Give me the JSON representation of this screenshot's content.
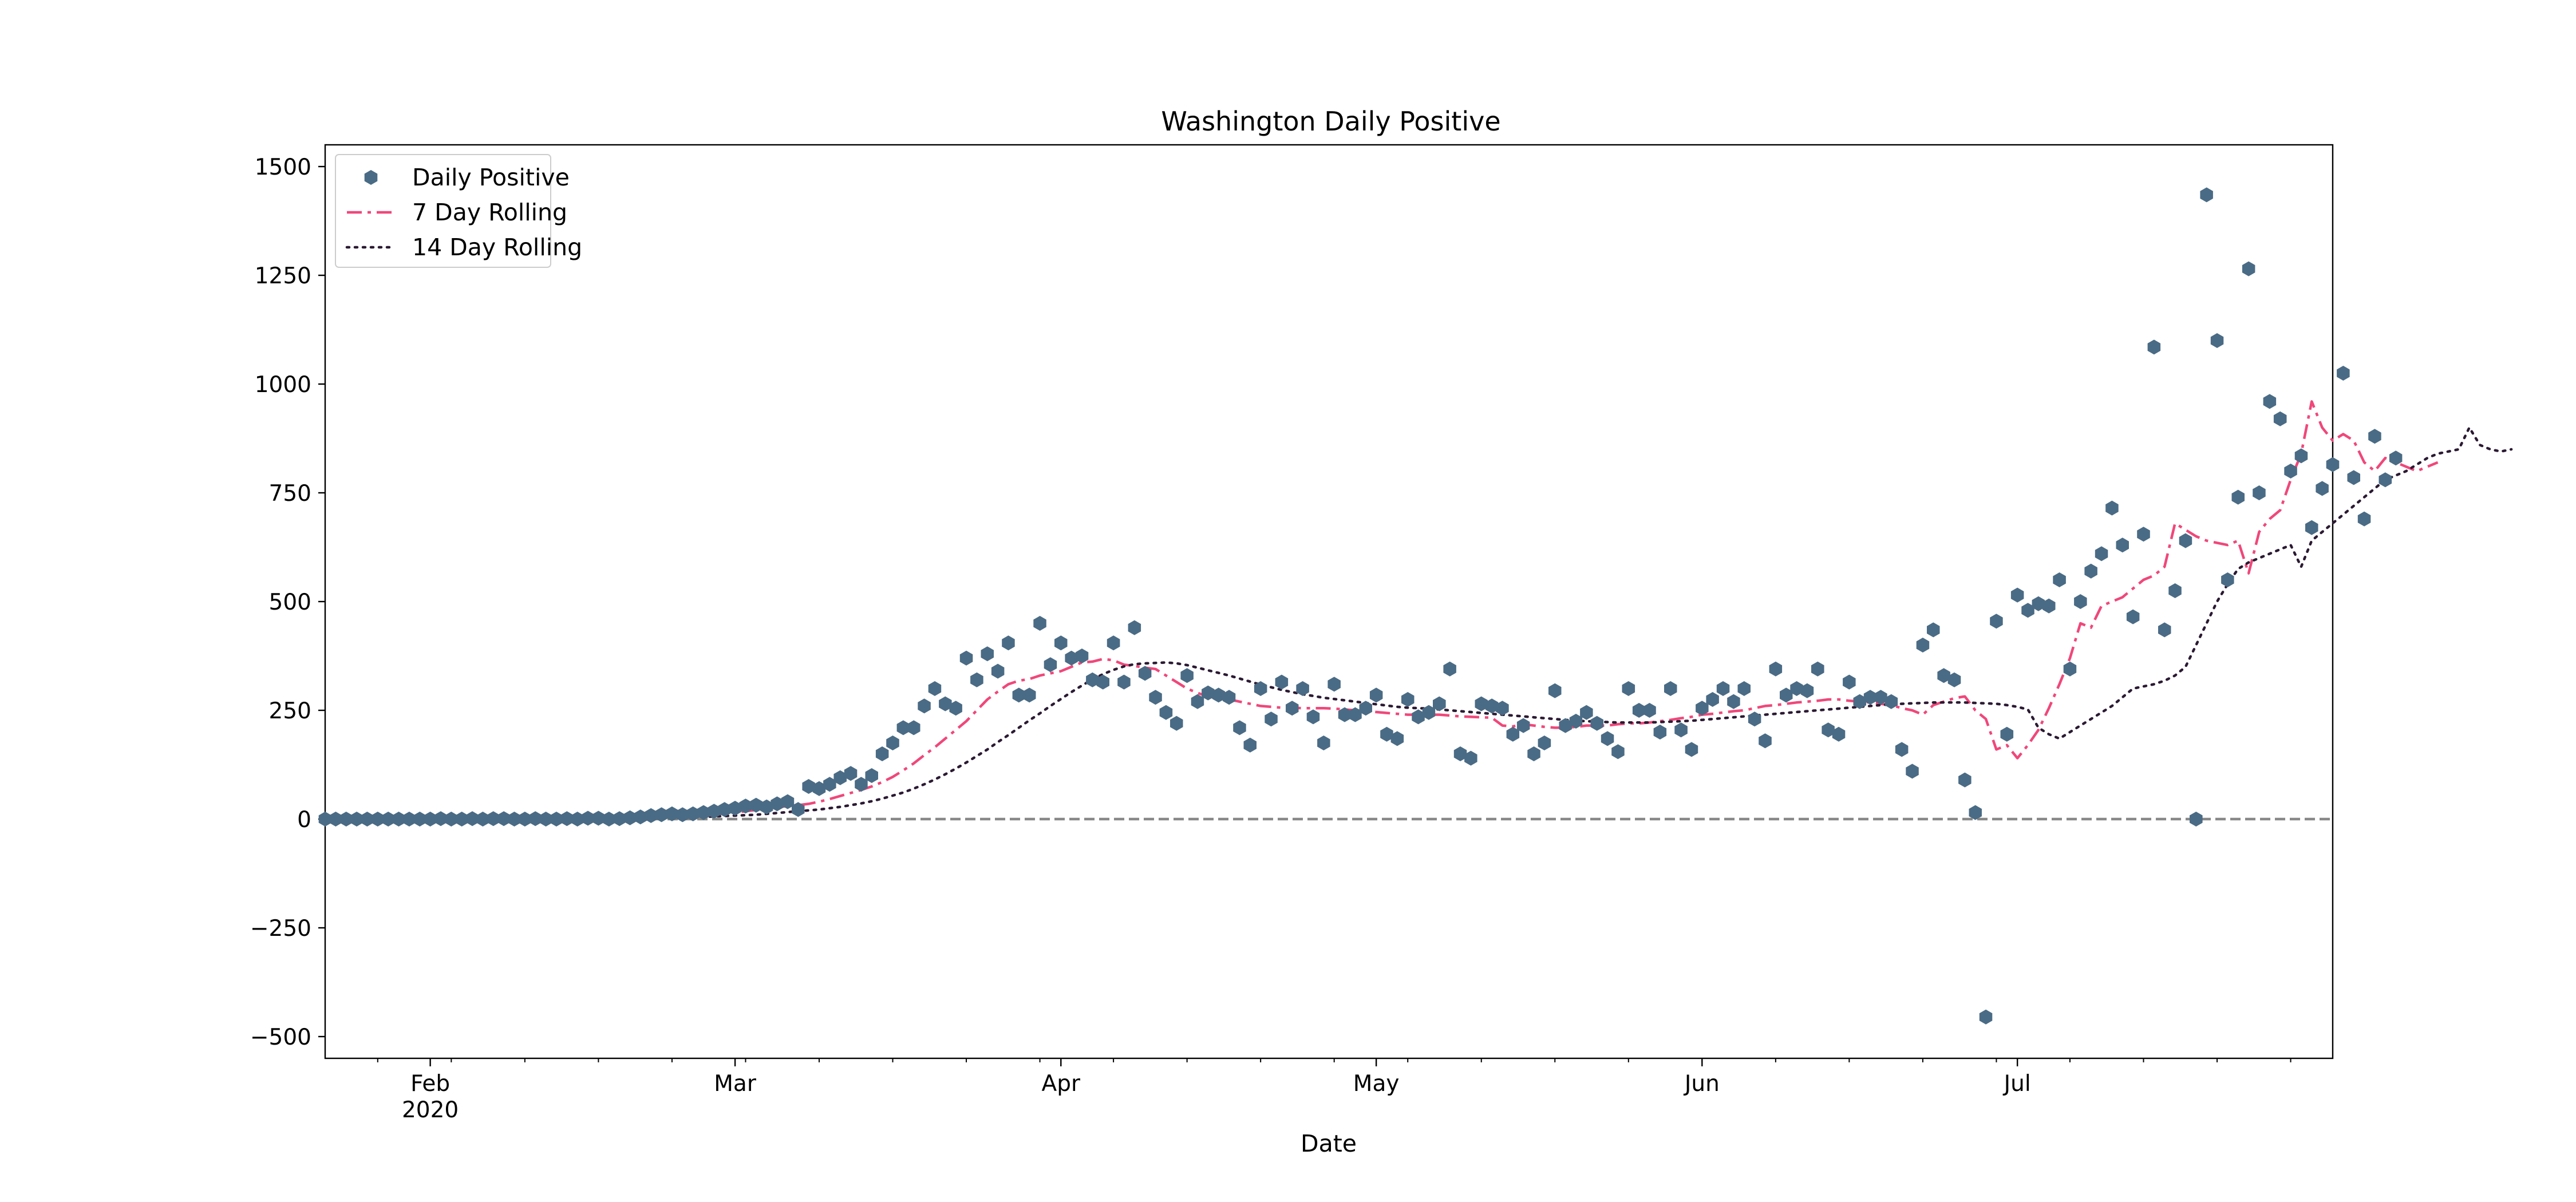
{
  "chart_data": {
    "type": "line",
    "title": "Washington Daily Positive",
    "xlabel": "Date",
    "ylabel": "",
    "x_axis": {
      "type": "date",
      "range": [
        "2020-01-22",
        "2020-07-31"
      ],
      "ticks": [
        {
          "date": "2020-02-01",
          "label": "Feb",
          "sublabel": "2020"
        },
        {
          "date": "2020-03-01",
          "label": "Mar",
          "sublabel": ""
        },
        {
          "date": "2020-04-01",
          "label": "Apr",
          "sublabel": ""
        },
        {
          "date": "2020-05-01",
          "label": "May",
          "sublabel": ""
        },
        {
          "date": "2020-06-01",
          "label": "Jun",
          "sublabel": ""
        },
        {
          "date": "2020-07-01",
          "label": "Jul",
          "sublabel": ""
        }
      ]
    },
    "y_axis": {
      "range": [
        -550,
        1550
      ],
      "ticks": [
        -500,
        -250,
        0,
        250,
        500,
        750,
        1000,
        1250,
        1500
      ],
      "tick_labels": [
        "−500",
        "−250",
        "0",
        "250",
        "500",
        "750",
        "1000",
        "1250",
        "1500"
      ]
    },
    "grid": false,
    "legend_position": "top-left",
    "reference_line": {
      "y": 0,
      "style": "dashed",
      "color": "#888888"
    },
    "start_date": "2020-01-22",
    "series": [
      {
        "name": "Daily Positive",
        "kind": "scatter",
        "color": "#4a6b85",
        "values": [
          0,
          0,
          0,
          0,
          0,
          0,
          0,
          0,
          0,
          0,
          0,
          1,
          0,
          0,
          1,
          0,
          1,
          1,
          0,
          0,
          1,
          0,
          0,
          1,
          0,
          2,
          2,
          0,
          1,
          3,
          5,
          8,
          10,
          12,
          10,
          12,
          15,
          18,
          22,
          25,
          30,
          32,
          28,
          35,
          40,
          22,
          75,
          70,
          80,
          95,
          105,
          80,
          100,
          150,
          175,
          210,
          210,
          260,
          300,
          265,
          255,
          370,
          320,
          380,
          340,
          405,
          285,
          285,
          450,
          355,
          405,
          370,
          375,
          320,
          315,
          405,
          315,
          440,
          335,
          280,
          245,
          220,
          330,
          270,
          290,
          285,
          280,
          210,
          170,
          300,
          230,
          315,
          255,
          300,
          235,
          175,
          310,
          240,
          240,
          255,
          285,
          195,
          185,
          275,
          235,
          245,
          265,
          345,
          150,
          140,
          265,
          260,
          255,
          195,
          215,
          150,
          175,
          295,
          215,
          225,
          245,
          220,
          185,
          155,
          300,
          250,
          250,
          200,
          300,
          205,
          160,
          255,
          275,
          300,
          270,
          300,
          230,
          180,
          345,
          285,
          300,
          295,
          345,
          205,
          195,
          315,
          270,
          280,
          280,
          270,
          160,
          110,
          400,
          435,
          330,
          320,
          90,
          15,
          -455,
          455,
          195,
          515,
          480,
          495,
          490,
          550,
          345,
          500,
          570,
          610,
          715,
          630,
          465,
          655,
          1085,
          435,
          525,
          640,
          0,
          1435,
          1100,
          550,
          740,
          1265,
          750,
          960,
          920,
          800,
          835,
          670,
          760,
          815,
          1025,
          785,
          690,
          880,
          780,
          830
        ]
      },
      {
        "name": "7 Day Rolling",
        "kind": "line",
        "line_style": "dash-dot",
        "color": "#f0477a",
        "values": [
          0,
          0,
          0,
          0,
          0,
          0,
          0,
          0,
          0,
          0,
          0,
          0,
          0,
          0,
          0,
          0,
          0,
          0,
          0,
          0,
          0,
          0,
          0,
          0,
          0,
          1,
          1,
          1,
          1,
          2,
          3,
          4,
          5,
          6,
          7,
          8,
          9,
          11,
          13,
          15,
          18,
          21,
          24,
          27,
          30,
          32,
          35,
          40,
          46,
          53,
          60,
          67,
          75,
          85,
          97,
          112,
          128,
          147,
          165,
          185,
          205,
          225,
          250,
          275,
          293,
          310,
          318,
          322,
          330,
          335,
          340,
          350,
          360,
          362,
          368,
          365,
          355,
          352,
          348,
          345,
          330,
          315,
          300,
          290,
          282,
          278,
          275,
          270,
          265,
          260,
          258,
          256,
          256,
          255,
          255,
          255,
          254,
          252,
          250,
          248,
          246,
          244,
          242,
          240,
          240,
          240,
          240,
          238,
          236,
          235,
          234,
          233,
          215,
          213,
          218,
          215,
          212,
          210,
          210,
          212,
          215,
          215,
          215,
          218,
          220,
          220,
          222,
          225,
          228,
          232,
          235,
          240,
          242,
          245,
          248,
          250,
          255,
          260,
          262,
          265,
          268,
          270,
          272,
          275,
          275,
          272,
          270,
          268,
          265,
          262,
          255,
          250,
          240,
          262,
          270,
          278,
          282,
          250,
          230,
          160,
          170,
          140,
          170,
          205,
          255,
          310,
          370,
          450,
          440,
          490,
          500,
          510,
          530,
          550,
          560,
          580,
          680,
          665,
          650,
          640,
          635,
          630,
          640,
          565,
          660,
          690,
          710,
          780,
          840,
          960,
          900,
          870,
          885,
          870,
          820,
          800,
          830,
          820,
          810,
          800,
          810,
          820
        ]
      },
      {
        "name": "14 Day Rolling",
        "kind": "line",
        "line_style": "dotted",
        "color": "#2b1a33",
        "values": [
          0,
          0,
          0,
          0,
          0,
          0,
          0,
          0,
          0,
          0,
          0,
          0,
          0,
          0,
          0,
          0,
          0,
          0,
          0,
          0,
          0,
          0,
          0,
          0,
          0,
          0,
          0,
          0,
          1,
          1,
          1,
          2,
          2,
          3,
          3,
          4,
          5,
          6,
          7,
          8,
          9,
          10,
          12,
          14,
          16,
          18,
          20,
          22,
          25,
          28,
          32,
          36,
          41,
          47,
          54,
          61,
          70,
          80,
          91,
          103,
          116,
          130,
          145,
          160,
          177,
          193,
          210,
          227,
          243,
          260,
          276,
          292,
          307,
          321,
          333,
          343,
          351,
          356,
          358,
          359,
          360,
          358,
          354,
          348,
          342,
          336,
          330,
          323,
          316,
          309,
          303,
          297,
          292,
          287,
          283,
          279,
          276,
          273,
          270,
          267,
          264,
          261,
          258,
          256,
          255,
          254,
          252,
          250,
          248,
          246,
          244,
          242,
          240,
          238,
          236,
          234,
          232,
          230,
          228,
          226,
          225,
          224,
          223,
          222,
          222,
          222,
          222,
          223,
          224,
          225,
          226,
          228,
          230,
          232,
          234,
          236,
          238,
          240,
          242,
          244,
          246,
          248,
          250,
          252,
          254,
          256,
          258,
          260,
          262,
          264,
          265,
          266,
          267,
          268,
          268,
          268,
          268,
          267,
          266,
          265,
          262,
          258,
          252,
          210,
          195,
          185,
          200,
          215,
          230,
          245,
          260,
          280,
          300,
          305,
          310,
          318,
          330,
          350,
          400,
          450,
          500,
          540,
          575,
          590,
          600,
          610,
          620,
          630,
          580,
          640,
          660,
          680,
          700,
          720,
          740,
          760,
          780,
          790,
          800,
          815,
          830,
          840,
          845,
          850,
          900,
          860,
          850,
          845,
          850
        ]
      }
    ]
  }
}
